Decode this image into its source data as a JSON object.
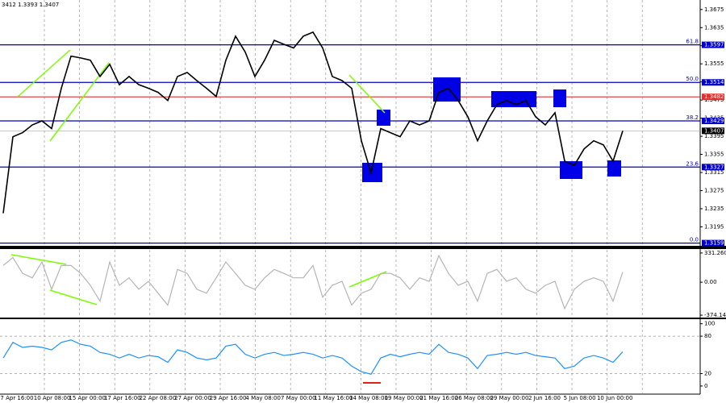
{
  "chart_data": [
    {
      "type": "line",
      "header": "3412 1.3393 1.3407",
      "color": "#000000",
      "values": [
        1.3225,
        1.3394,
        1.3403,
        1.342,
        1.3429,
        1.3412,
        1.3501,
        1.3572,
        1.3568,
        1.3563,
        1.3527,
        1.3554,
        1.3509,
        1.3527,
        1.3509,
        1.3501,
        1.3492,
        1.3474,
        1.3527,
        1.3536,
        1.3518,
        1.3501,
        1.3483,
        1.3563,
        1.3616,
        1.3581,
        1.3527,
        1.3563,
        1.3607,
        1.3598,
        1.359,
        1.3616,
        1.3625,
        1.359,
        1.3527,
        1.3518,
        1.3501,
        1.3385,
        1.3314,
        1.3412,
        1.3403,
        1.3394,
        1.3429,
        1.342,
        1.3429,
        1.3492,
        1.3501,
        1.3474,
        1.3438,
        1.3385,
        1.3429,
        1.3465,
        1.3474,
        1.3465,
        1.3474,
        1.3438,
        1.342,
        1.3447,
        1.334,
        1.3331,
        1.3367,
        1.3385,
        1.3376,
        1.334,
        1.3407
      ],
      "ylim": [
        1.3153,
        1.3696
      ],
      "yticks": [
        1.3675,
        1.3635,
        1.3595,
        1.3555,
        1.3515,
        1.3475,
        1.3435,
        1.3395,
        1.3355,
        1.3315,
        1.3275,
        1.3235,
        1.3195
      ],
      "levels": [
        {
          "price": 1.3597,
          "label": "61.8",
          "color": "#0000c8"
        },
        {
          "price": 1.3514,
          "label": "50.0",
          "color": "#0000c8"
        },
        {
          "price": 1.3482,
          "color": "#e03030"
        },
        {
          "price": 1.3429,
          "label": "38.2",
          "color": "#0000c8"
        },
        {
          "price": 1.3327,
          "label": "23.6",
          "color": "#0000c8"
        },
        {
          "price": 1.3159,
          "label": "0.0",
          "color": "#0000c8"
        }
      ],
      "current_price": 1.3407
    },
    {
      "type": "line",
      "color": "#b4b4b4",
      "values": [
        190,
        280,
        100,
        50,
        230,
        -80,
        190,
        190,
        100,
        -35,
        -215,
        230,
        -35,
        50,
        -80,
        10,
        -125,
        -260,
        145,
        100,
        -80,
        -125,
        50,
        230,
        100,
        -35,
        -80,
        50,
        145,
        100,
        50,
        50,
        190,
        -170,
        -35,
        10,
        -260,
        -125,
        -80,
        100,
        100,
        50,
        -80,
        50,
        10,
        300,
        100,
        -35,
        10,
        -215,
        100,
        145,
        10,
        50,
        -80,
        -125,
        -35,
        10,
        -300,
        -80,
        10,
        50,
        10,
        -215,
        115
      ],
      "ylim": [
        -401,
        367
      ],
      "yticks": [
        331.2603,
        {
          "value": 0,
          "label": "0.00"
        },
        -374.144
      ]
    },
    {
      "type": "line",
      "color": "#1e90ff",
      "values": [
        45,
        70,
        62,
        64,
        62,
        58,
        70,
        74,
        67,
        64,
        54,
        51,
        45,
        51,
        45,
        49,
        47,
        38,
        58,
        54,
        45,
        42,
        45,
        64,
        67,
        51,
        45,
        51,
        54,
        49,
        51,
        54,
        51,
        45,
        49,
        45,
        32,
        23,
        19,
        45,
        51,
        47,
        51,
        54,
        51,
        67,
        54,
        51,
        45,
        28,
        49,
        51,
        54,
        51,
        54,
        49,
        47,
        45,
        28,
        32,
        45,
        49,
        45,
        38,
        55
      ],
      "ylim": [
        -13,
        106
      ],
      "yticks": [
        100,
        80,
        20,
        0
      ],
      "dashed_grid": [
        80,
        20
      ],
      "x_labels": [
        "7 Apr 16:00",
        "10 Apr 08:00",
        "15 Apr 00:00",
        "17 Apr 16:00",
        "22 Apr 08:00",
        "27 Apr 00:00",
        "29 Apr 16:00",
        "4 May 08:00",
        "7 May 00:00",
        "11 May 16:00",
        "14 May 08:00",
        "19 May 00:00",
        "21 May 16:00",
        "26 May 08:00",
        "29 May 00:00",
        "2 Jun 16:00",
        "5 Jun 08:00",
        "10 Jun 00:00"
      ]
    }
  ]
}
